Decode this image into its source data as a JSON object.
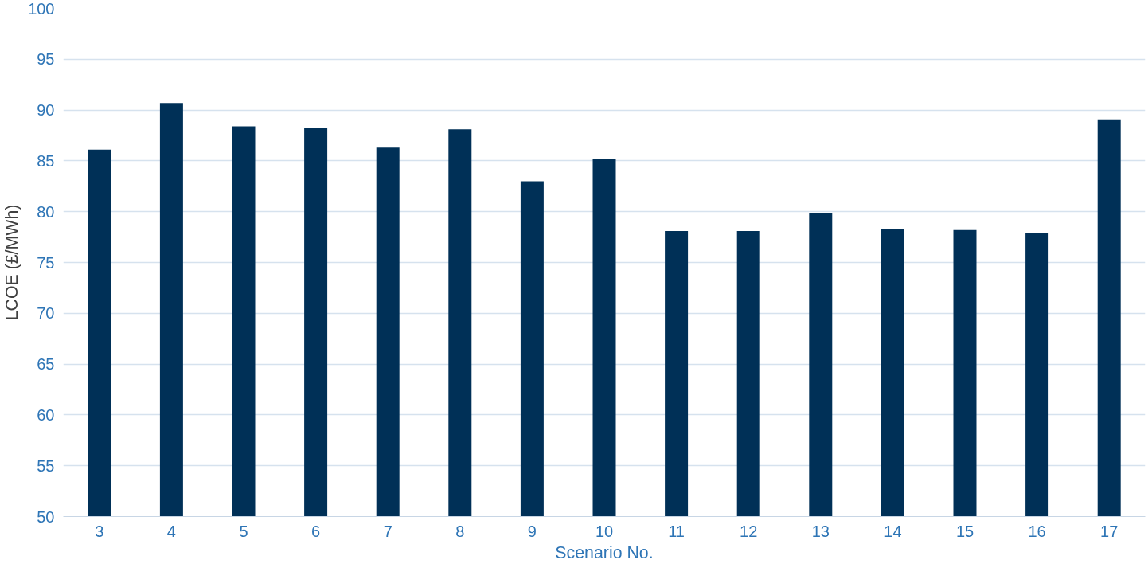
{
  "chart_data": {
    "type": "bar",
    "xlabel": "Scenario No.",
    "ylabel": "LCOE (£/MWh)",
    "categories": [
      "3",
      "4",
      "5",
      "6",
      "7",
      "8",
      "9",
      "10",
      "11",
      "12",
      "13",
      "14",
      "15",
      "16",
      "17"
    ],
    "values": [
      86.1,
      90.7,
      88.4,
      88.2,
      86.3,
      88.1,
      83.0,
      85.2,
      78.1,
      78.1,
      79.9,
      78.3,
      78.2,
      77.9,
      89.0
    ],
    "color": "#003057",
    "ylim": [
      50,
      100
    ],
    "yticks": [
      50,
      55,
      60,
      65,
      70,
      75,
      80,
      85,
      90,
      95,
      100
    ],
    "grid": "y"
  }
}
